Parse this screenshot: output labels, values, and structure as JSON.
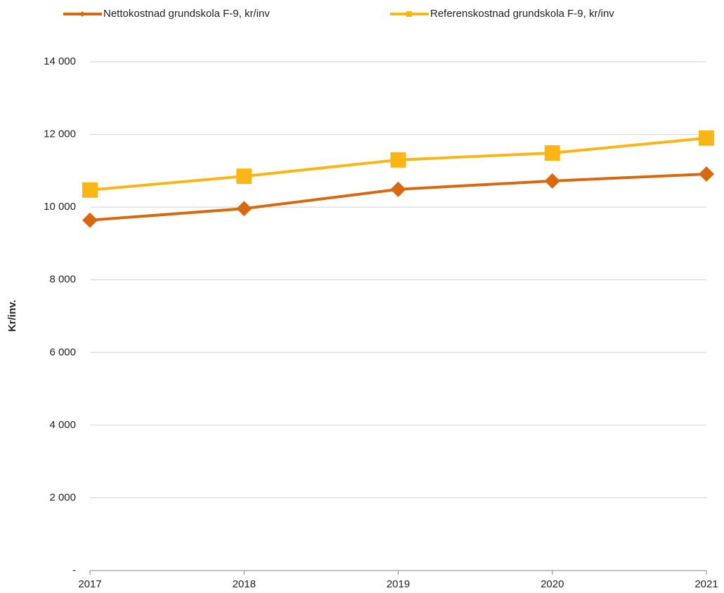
{
  "chart_data": {
    "type": "line",
    "y_label": "Kr/inv.",
    "categories": [
      "2017",
      "2018",
      "2019",
      "2020",
      "2021"
    ],
    "series": [
      {
        "name": "Nettokostnad grundskola F-9, kr/inv",
        "color": "#d8690d",
        "marker": "diamond",
        "values": [
          9640,
          9960,
          10490,
          10720,
          10910
        ]
      },
      {
        "name": "Referenskostnad grundskola F-9, kr/inv",
        "color": "#fbb515",
        "marker": "square",
        "values": [
          10470,
          10850,
          11300,
          11490,
          11900
        ]
      }
    ],
    "ylim": [
      0,
      14000
    ],
    "yticks": [
      {
        "value": 0,
        "label": "-"
      },
      {
        "value": 2000,
        "label": "2 000"
      },
      {
        "value": 4000,
        "label": "4 000"
      },
      {
        "value": 6000,
        "label": "6 000"
      },
      {
        "value": 8000,
        "label": "8 000"
      },
      {
        "value": 10000,
        "label": "10 000"
      },
      {
        "value": 12000,
        "label": "12 000"
      },
      {
        "value": 14000,
        "label": "14 000"
      }
    ],
    "grid": true,
    "legend": "top"
  }
}
